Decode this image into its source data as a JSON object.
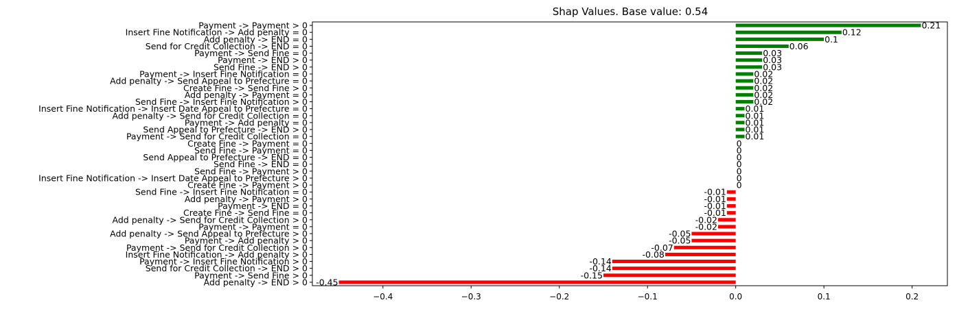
{
  "chart_data": {
    "type": "bar",
    "orientation": "horizontal",
    "title": "Shap Values. Base value: 0.54",
    "xlabel": "",
    "ylabel": "",
    "xlim": [
      -0.48,
      0.24
    ],
    "xticks": [
      -0.4,
      -0.3,
      -0.2,
      -0.1,
      0.0,
      0.1,
      0.2
    ],
    "xtick_labels": [
      "−0.4",
      "−0.3",
      "−0.2",
      "−0.1",
      "0.0",
      "0.1",
      "0.2"
    ],
    "positive_color": "#008000",
    "negative_color": "#ff0000",
    "bars": [
      {
        "label": "Payment -> Payment > 0",
        "value": 0.21,
        "value_label": "0.21"
      },
      {
        "label": "Insert Fine Notification -> Add penalty = 0",
        "value": 0.12,
        "value_label": "0.12"
      },
      {
        "label": "Add penalty -> END = 0",
        "value": 0.1,
        "value_label": "0.1"
      },
      {
        "label": "Send for Credit Collection -> END = 0",
        "value": 0.06,
        "value_label": "0.06"
      },
      {
        "label": "Payment -> Send Fine = 0",
        "value": 0.03,
        "value_label": "0.03"
      },
      {
        "label": "Payment -> END > 0",
        "value": 0.03,
        "value_label": "0.03"
      },
      {
        "label": "Send Fine -> END > 0",
        "value": 0.03,
        "value_label": "0.03"
      },
      {
        "label": "Payment -> Insert Fine Notification = 0",
        "value": 0.02,
        "value_label": "0.02"
      },
      {
        "label": "Add penalty -> Send Appeal to Prefecture = 0",
        "value": 0.02,
        "value_label": "0.02"
      },
      {
        "label": "Create Fine -> Send Fine > 0",
        "value": 0.02,
        "value_label": "0.02"
      },
      {
        "label": "Add penalty -> Payment = 0",
        "value": 0.02,
        "value_label": "0.02"
      },
      {
        "label": "Send Fine -> Insert Fine Notification > 0",
        "value": 0.02,
        "value_label": "0.02"
      },
      {
        "label": "Insert Fine Notification -> Insert Date Appeal to Prefecture = 0",
        "value": 0.01,
        "value_label": "0.01"
      },
      {
        "label": "Add penalty -> Send for Credit Collection = 0",
        "value": 0.01,
        "value_label": "0.01"
      },
      {
        "label": "Payment -> Add penalty = 0",
        "value": 0.01,
        "value_label": "0.01"
      },
      {
        "label": "Send Appeal to Prefecture -> END > 0",
        "value": 0.01,
        "value_label": "0.01"
      },
      {
        "label": "Payment -> Send for Credit Collection = 0",
        "value": 0.01,
        "value_label": "0.01"
      },
      {
        "label": "Create Fine -> Payment = 0",
        "value": 0,
        "value_label": "0"
      },
      {
        "label": "Send Fine -> Payment = 0",
        "value": 0,
        "value_label": "0"
      },
      {
        "label": "Send Appeal to Prefecture -> END = 0",
        "value": 0,
        "value_label": "0"
      },
      {
        "label": "Send Fine -> END = 0",
        "value": 0,
        "value_label": "0"
      },
      {
        "label": "Send Fine -> Payment > 0",
        "value": 0,
        "value_label": "0"
      },
      {
        "label": "Insert Fine Notification -> Insert Date Appeal to Prefecture > 0",
        "value": 0,
        "value_label": "0"
      },
      {
        "label": "Create Fine -> Payment > 0",
        "value": 0,
        "value_label": "0"
      },
      {
        "label": "Send Fine -> Insert Fine Notification = 0",
        "value": -0.01,
        "value_label": "-0.01"
      },
      {
        "label": "Add penalty -> Payment > 0",
        "value": -0.01,
        "value_label": "-0.01"
      },
      {
        "label": "Payment -> END = 0",
        "value": -0.01,
        "value_label": "-0.01"
      },
      {
        "label": "Create Fine -> Send Fine = 0",
        "value": -0.01,
        "value_label": "-0.01"
      },
      {
        "label": "Add penalty -> Send for Credit Collection > 0",
        "value": -0.02,
        "value_label": "-0.02"
      },
      {
        "label": "Payment -> Payment = 0",
        "value": -0.02,
        "value_label": "-0.02"
      },
      {
        "label": "Add penalty -> Send Appeal to Prefecture > 0",
        "value": -0.05,
        "value_label": "-0.05"
      },
      {
        "label": "Payment -> Add penalty > 0",
        "value": -0.05,
        "value_label": "-0.05"
      },
      {
        "label": "Payment -> Send for Credit Collection > 0",
        "value": -0.07,
        "value_label": "-0.07"
      },
      {
        "label": "Insert Fine Notification -> Add penalty > 0",
        "value": -0.08,
        "value_label": "-0.08"
      },
      {
        "label": "Payment -> Insert Fine Notification > 0",
        "value": -0.14,
        "value_label": "-0.14"
      },
      {
        "label": "Send for Credit Collection -> END > 0",
        "value": -0.14,
        "value_label": "-0.14"
      },
      {
        "label": "Payment -> Send Fine > 0",
        "value": -0.15,
        "value_label": "-0.15"
      },
      {
        "label": "Add penalty -> END > 0",
        "value": -0.45,
        "value_label": "-0.45"
      }
    ]
  }
}
